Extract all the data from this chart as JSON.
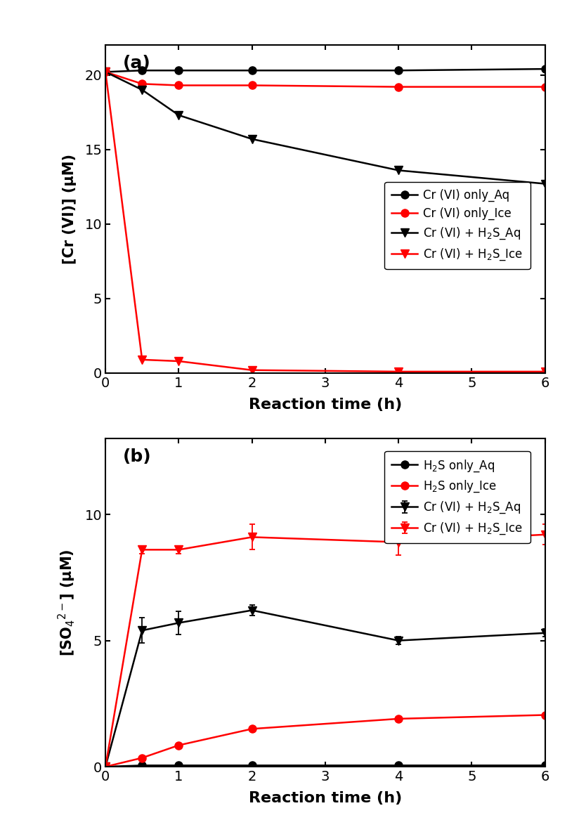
{
  "panel_a": {
    "title": "(a)",
    "ylabel": "[Cr (VI)] (μM)",
    "xlabel": "Reaction time (h)",
    "xlim": [
      0,
      6
    ],
    "ylim": [
      0,
      22
    ],
    "yticks": [
      0,
      5,
      10,
      15,
      20
    ],
    "xticks": [
      0,
      1,
      2,
      3,
      4,
      5,
      6
    ],
    "series": [
      {
        "label": "Cr (VI) only_Aq",
        "x": [
          0,
          0.5,
          1,
          2,
          4,
          6
        ],
        "y": [
          20.2,
          20.3,
          20.3,
          20.3,
          20.3,
          20.4
        ],
        "color": "#000000",
        "marker": "o",
        "markersize": 8,
        "linewidth": 1.8
      },
      {
        "label": "Cr (VI) only_Ice",
        "x": [
          0,
          0.5,
          1,
          2,
          4,
          6
        ],
        "y": [
          20.2,
          19.4,
          19.3,
          19.3,
          19.2,
          19.2
        ],
        "color": "#ff0000",
        "marker": "o",
        "markersize": 8,
        "linewidth": 1.8
      },
      {
        "label": "Cr (VI) + H$_2$S_Aq",
        "x": [
          0,
          0.5,
          1,
          2,
          4,
          6
        ],
        "y": [
          20.2,
          19.0,
          17.3,
          15.7,
          13.6,
          12.7
        ],
        "color": "#000000",
        "marker": "v",
        "markersize": 9,
        "linewidth": 1.8
      },
      {
        "label": "Cr (VI) + H$_2$S_Ice",
        "x": [
          0,
          0.5,
          1,
          2,
          4,
          6
        ],
        "y": [
          20.2,
          0.9,
          0.8,
          0.2,
          0.1,
          0.1
        ],
        "color": "#ff0000",
        "marker": "v",
        "markersize": 9,
        "linewidth": 1.8
      }
    ]
  },
  "panel_b": {
    "title": "(b)",
    "ylabel": "[SO$_4$$^{2-}$] (μM)",
    "xlabel": "Reaction time (h)",
    "xlim": [
      0,
      6
    ],
    "ylim": [
      0,
      13
    ],
    "yticks": [
      0,
      5,
      10
    ],
    "xticks": [
      0,
      1,
      2,
      3,
      4,
      5,
      6
    ],
    "series": [
      {
        "label": "H$_2$S only_Aq",
        "x": [
          0,
          0.5,
          1,
          2,
          4,
          6
        ],
        "y": [
          0.0,
          0.05,
          0.05,
          0.05,
          0.05,
          0.05
        ],
        "yerr": [
          0,
          0,
          0,
          0,
          0,
          0
        ],
        "color": "#000000",
        "marker": "o",
        "markersize": 8,
        "linewidth": 1.8
      },
      {
        "label": "H$_2$S only_Ice",
        "x": [
          0,
          0.5,
          1,
          2,
          4,
          6
        ],
        "y": [
          0.0,
          0.35,
          0.85,
          1.5,
          1.9,
          2.05
        ],
        "yerr": [
          0,
          0,
          0,
          0,
          0,
          0
        ],
        "color": "#ff0000",
        "marker": "o",
        "markersize": 8,
        "linewidth": 1.8
      },
      {
        "label": "Cr (VI) + H$_2$S_Aq",
        "x": [
          0,
          0.5,
          1,
          2,
          4,
          6
        ],
        "y": [
          0.0,
          5.4,
          5.7,
          6.2,
          5.0,
          5.3
        ],
        "yerr": [
          0,
          0.5,
          0.45,
          0.2,
          0.15,
          0.15
        ],
        "color": "#000000",
        "marker": "v",
        "markersize": 9,
        "linewidth": 1.8
      },
      {
        "label": "Cr (VI) + H$_2$S_Ice",
        "x": [
          0,
          0.5,
          1,
          2,
          4,
          6
        ],
        "y": [
          0.0,
          8.6,
          8.6,
          9.1,
          8.9,
          9.2
        ],
        "yerr": [
          0,
          0.15,
          0.15,
          0.5,
          0.5,
          0.4
        ],
        "color": "#ff0000",
        "marker": "v",
        "markersize": 9,
        "linewidth": 1.8
      }
    ]
  }
}
